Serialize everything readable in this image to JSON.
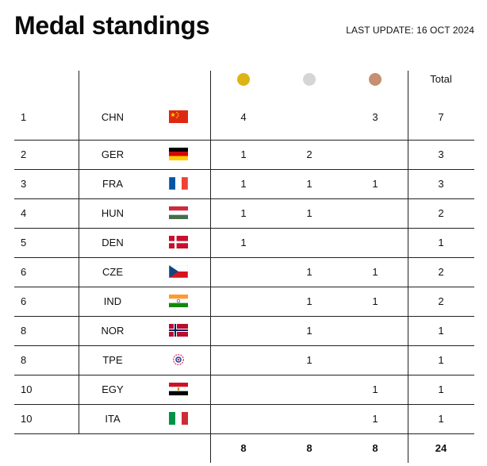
{
  "header": {
    "title": "Medal standings",
    "update_label": "LAST UPDATE:",
    "update_date": "16 OCT 2024"
  },
  "table": {
    "columns": {
      "gold_icon": "gold-medal-icon",
      "silver_icon": "silver-medal-icon",
      "bronze_icon": "bronze-medal-icon",
      "total": "Total"
    },
    "colors": {
      "gold": "#dcb515",
      "silver": "#d5d5d5",
      "bronze": "#c48f72"
    },
    "rows": [
      {
        "rank": "1",
        "country": "CHN",
        "flag": "china-flag-icon",
        "gold": "4",
        "silver": "",
        "bronze": "3",
        "total": "7"
      },
      {
        "rank": "2",
        "country": "GER",
        "flag": "germany-flag-icon",
        "gold": "1",
        "silver": "2",
        "bronze": "",
        "total": "3"
      },
      {
        "rank": "3",
        "country": "FRA",
        "flag": "france-flag-icon",
        "gold": "1",
        "silver": "1",
        "bronze": "1",
        "total": "3"
      },
      {
        "rank": "4",
        "country": "HUN",
        "flag": "hungary-flag-icon",
        "gold": "1",
        "silver": "1",
        "bronze": "",
        "total": "2"
      },
      {
        "rank": "5",
        "country": "DEN",
        "flag": "denmark-flag-icon",
        "gold": "1",
        "silver": "",
        "bronze": "",
        "total": "1"
      },
      {
        "rank": "6",
        "country": "CZE",
        "flag": "czech-flag-icon",
        "gold": "",
        "silver": "1",
        "bronze": "1",
        "total": "2"
      },
      {
        "rank": "6",
        "country": "IND",
        "flag": "india-flag-icon",
        "gold": "",
        "silver": "1",
        "bronze": "1",
        "total": "2"
      },
      {
        "rank": "8",
        "country": "NOR",
        "flag": "norway-flag-icon",
        "gold": "",
        "silver": "1",
        "bronze": "",
        "total": "1"
      },
      {
        "rank": "8",
        "country": "TPE",
        "flag": "chinese-taipei-flag-icon",
        "gold": "",
        "silver": "1",
        "bronze": "",
        "total": "1"
      },
      {
        "rank": "10",
        "country": "EGY",
        "flag": "egypt-flag-icon",
        "gold": "",
        "silver": "",
        "bronze": "1",
        "total": "1"
      },
      {
        "rank": "10",
        "country": "ITA",
        "flag": "italy-flag-icon",
        "gold": "",
        "silver": "",
        "bronze": "1",
        "total": "1"
      }
    ],
    "totals": {
      "gold": "8",
      "silver": "8",
      "bronze": "8",
      "total": "24"
    }
  }
}
